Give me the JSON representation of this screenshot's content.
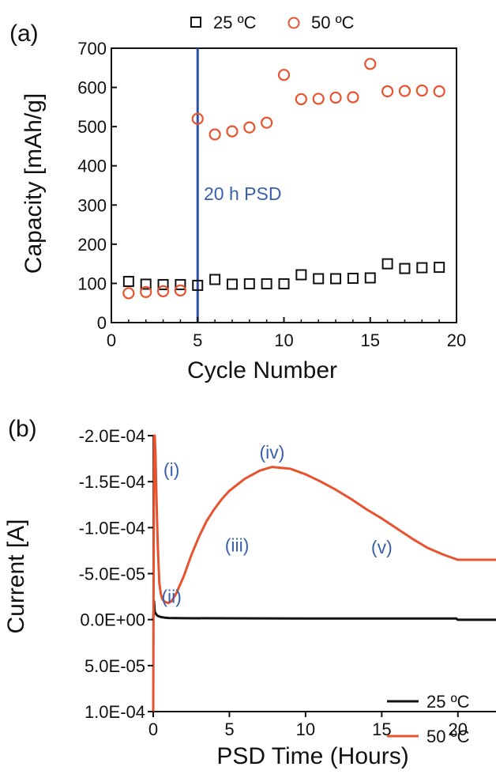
{
  "colors": {
    "series_25": "#111111",
    "series_50": "#e8532f",
    "marker_line": "#2e4fa3",
    "annotation": "#3a5fb0"
  },
  "chart_data": [
    {
      "type": "scatter",
      "panel_label": "(a)",
      "xlabel": "Cycle Number",
      "ylabel": "Capacity [mAh/g]",
      "xlim": [
        0,
        20
      ],
      "ylim": [
        0,
        700
      ],
      "xticks": [
        0,
        5,
        10,
        15,
        20
      ],
      "yticks": [
        0,
        100,
        200,
        300,
        400,
        500,
        600,
        700
      ],
      "legend_placement": "top",
      "series": [
        {
          "name": "25 ºC",
          "marker": "square",
          "x": [
            1,
            2,
            3,
            4,
            5,
            6,
            7,
            8,
            9,
            10,
            11,
            12,
            13,
            14,
            15,
            16,
            17,
            18,
            19
          ],
          "y": [
            105,
            98,
            97,
            97,
            95,
            110,
            98,
            99,
            99,
            99,
            122,
            112,
            112,
            113,
            114,
            150,
            138,
            140,
            141
          ]
        },
        {
          "name": "50 ºC",
          "marker": "circle",
          "x": [
            1,
            2,
            3,
            4,
            5,
            6,
            7,
            8,
            9,
            10,
            11,
            12,
            13,
            14,
            15,
            16,
            17,
            18,
            19
          ],
          "y": [
            75,
            78,
            80,
            82,
            520,
            480,
            488,
            498,
            510,
            632,
            570,
            571,
            574,
            575,
            660,
            590,
            591,
            592,
            590
          ]
        }
      ],
      "vline": {
        "x": 5,
        "label": "20 h PSD"
      }
    },
    {
      "type": "line",
      "panel_label": "(b)",
      "xlabel": "PSD Time (Hours)",
      "ylabel": "Current [A]",
      "xlim": [
        0,
        22.5
      ],
      "ylim": [
        -0.0002,
        0.0001
      ],
      "y_inverted": true,
      "xticks": [
        0,
        5,
        10,
        15,
        20
      ],
      "xtick_labels": [
        "0",
        "5",
        "10",
        "15",
        "20"
      ],
      "yticks": [
        -0.0002,
        -0.00015,
        -0.0001,
        -5e-05,
        0,
        5e-05,
        0.0001
      ],
      "ytick_labels": [
        "-2.0E-04",
        "-1.5E-04",
        "-1.0E-04",
        "-5.0E-05",
        "0.0E+00",
        "5.0E-05",
        "1.0E-04"
      ],
      "legend_placement": "bottom-right",
      "series": [
        {
          "name": "25 ºC",
          "x": [
            0.0,
            0.05,
            0.1,
            0.2,
            0.3,
            0.5,
            0.8,
            1.0,
            1.5,
            2,
            5,
            10,
            15,
            19.9,
            20,
            20.5,
            22.5
          ],
          "y": [
            0.0,
            -2e-05,
            -8.5e-06,
            -5.5e-06,
            -4e-06,
            -2.8e-06,
            -2e-06,
            -1.8e-06,
            -1.6e-06,
            -1.5e-06,
            -1.4e-06,
            -1.3e-06,
            -1.2e-06,
            -1.2e-06,
            2e-07,
            2e-07,
            2e-07
          ]
        },
        {
          "name": "50 ºC",
          "x": [
            0.0,
            0.05,
            0.1,
            0.15,
            0.2,
            0.3,
            0.4,
            0.5,
            0.6,
            0.8,
            1.0,
            1.2,
            1.5,
            2,
            2.5,
            3,
            3.5,
            4,
            4.5,
            5,
            6,
            7,
            7.8,
            9,
            10,
            11,
            12,
            13,
            14,
            15,
            16,
            17,
            18,
            19,
            19.5,
            20,
            20.5,
            22.5
          ],
          "y": [
            0.0001,
            -0.0002,
            -0.0002,
            -0.00018,
            -0.00014,
            -8e-05,
            -4e-05,
            -2.8e-05,
            -2.2e-05,
            -1.9e-05,
            -1.8e-05,
            -2e-05,
            -2.8e-05,
            -4.7e-05,
            -7e-05,
            -9e-05,
            -0.000107,
            -0.00012,
            -0.000131,
            -0.00014,
            -0.000153,
            -0.000162,
            -0.000166,
            -0.000164,
            -0.000158,
            -0.00015,
            -0.000141,
            -0.000131,
            -0.00012,
            -0.00011,
            -9.9e-05,
            -8.8e-05,
            -7.8e-05,
            -7.1e-05,
            -6.8e-05,
            -6.5e-05,
            -6.5e-05,
            -6.5e-05
          ]
        }
      ],
      "annotations": [
        {
          "text": "(i)",
          "x": 1.2,
          "y": -0.000163
        },
        {
          "text": "(ii)",
          "x": 1.2,
          "y": -2.5e-05
        },
        {
          "text": "(iii)",
          "x": 5.5,
          "y": -8.1e-05
        },
        {
          "text": "(iv)",
          "x": 7.8,
          "y": -0.000182
        },
        {
          "text": "(v)",
          "x": 15.0,
          "y": -7.9e-05
        }
      ]
    }
  ]
}
